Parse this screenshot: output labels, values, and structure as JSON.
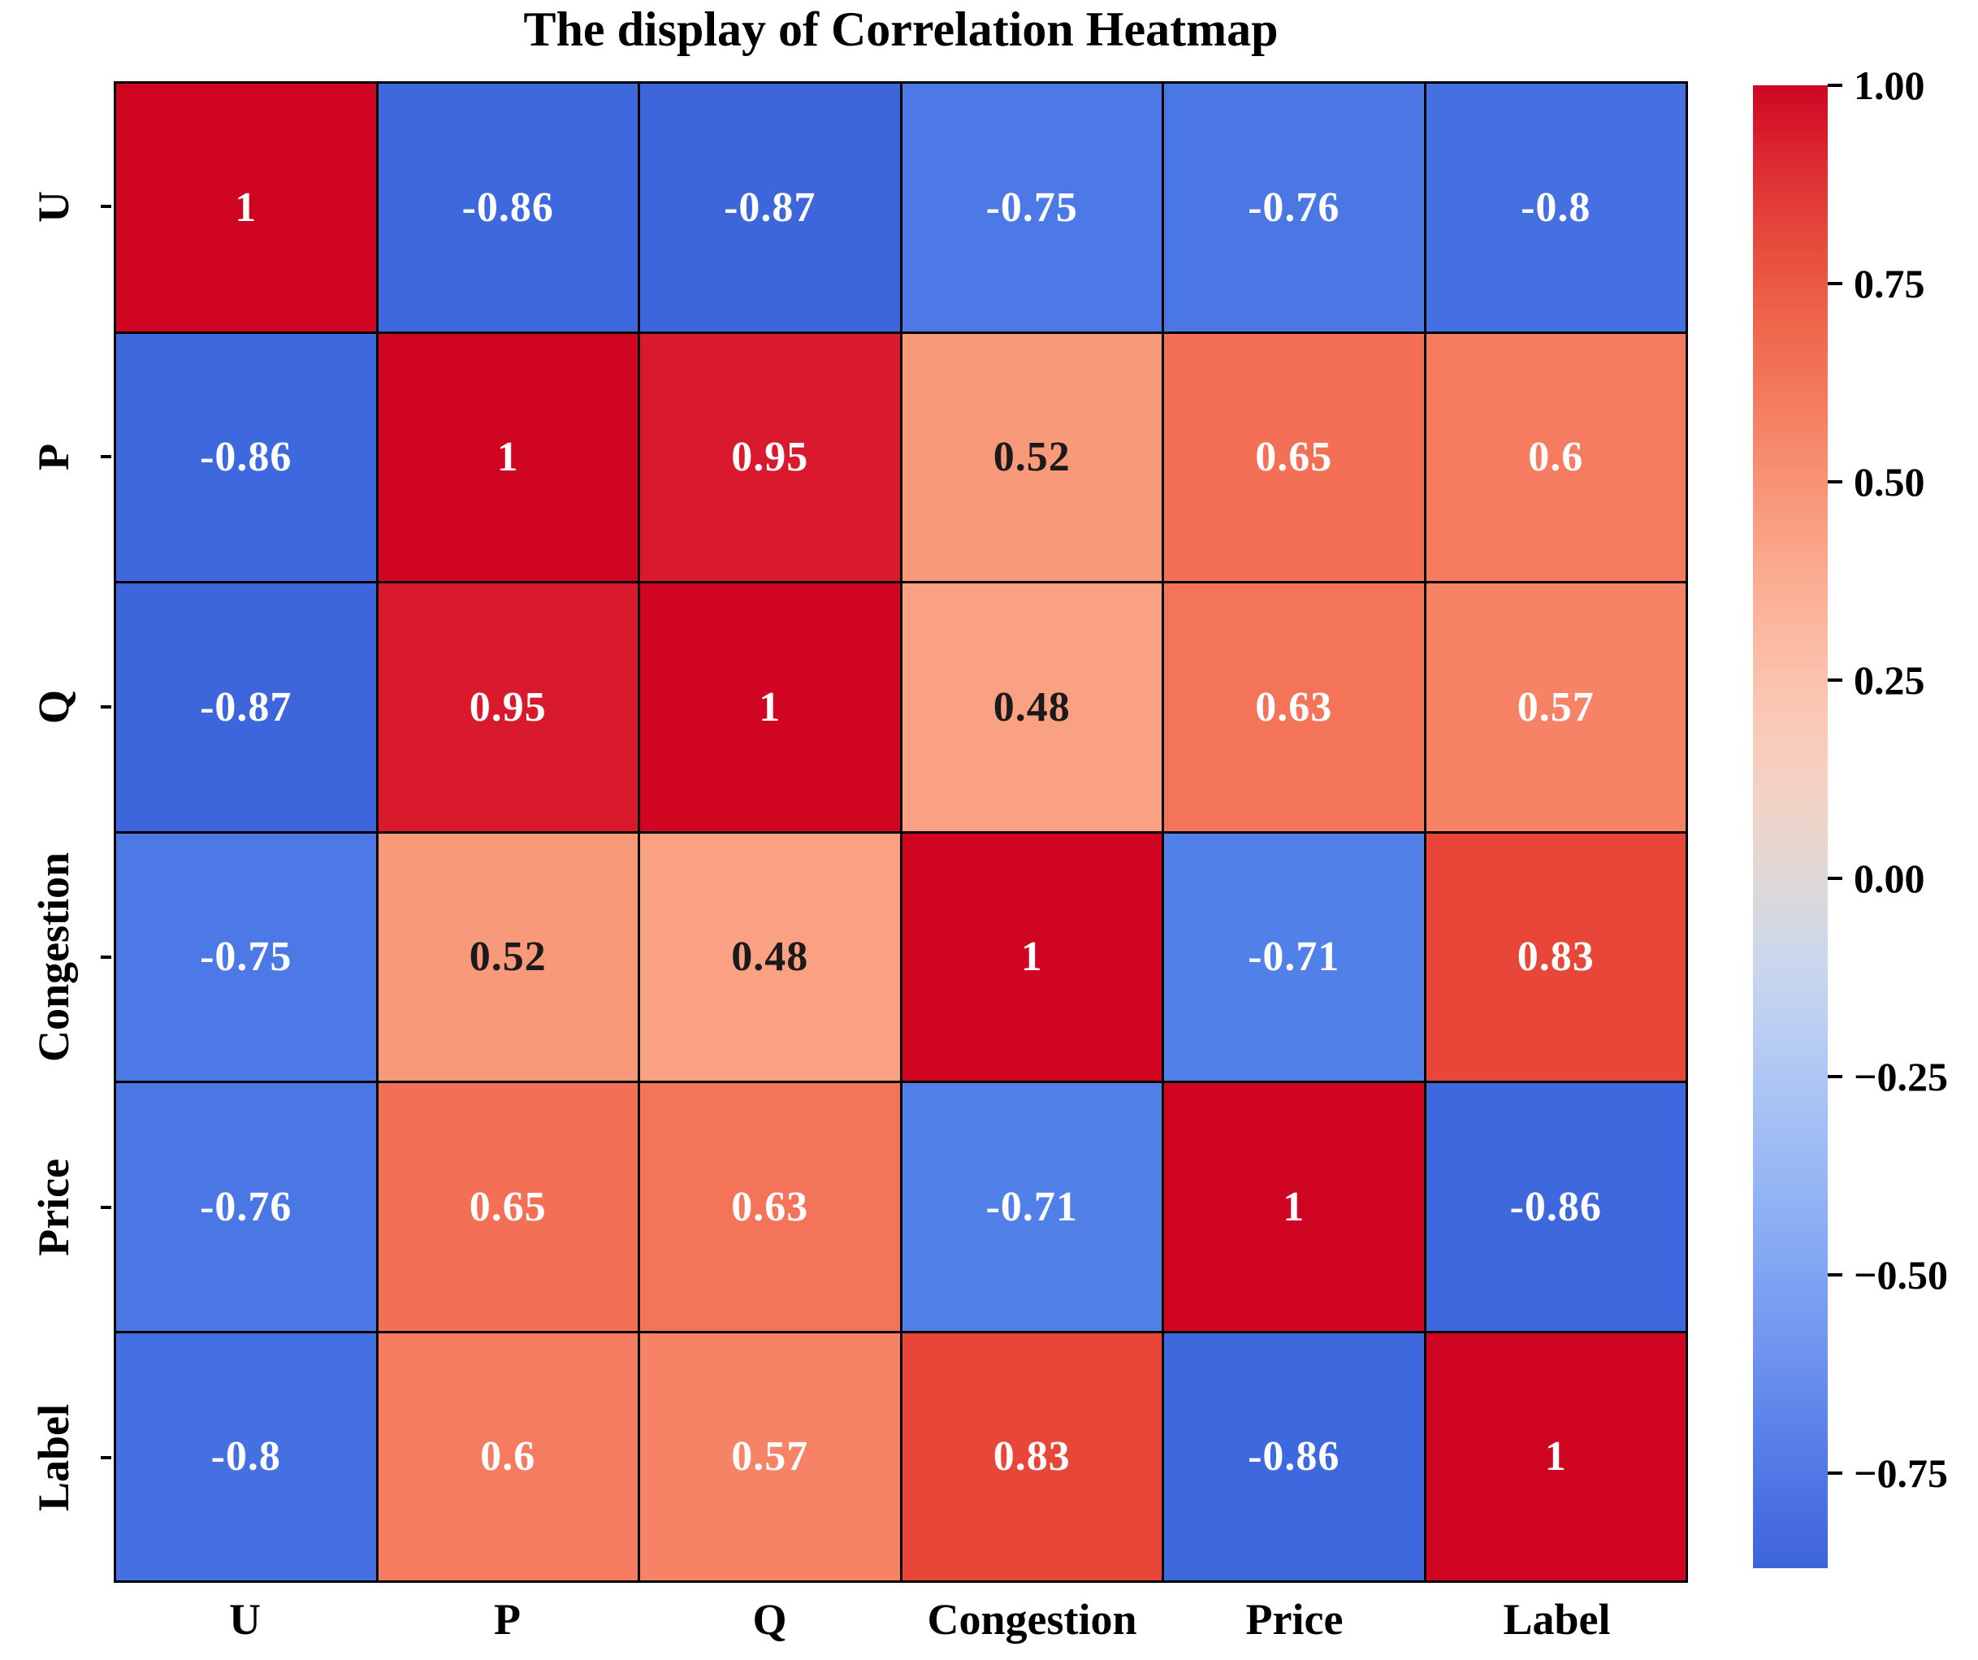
{
  "title": "The display of Correlation Heatmap",
  "chart_data": {
    "type": "heatmap",
    "title": "The display of Correlation Heatmap",
    "categories": [
      "U",
      "P",
      "Q",
      "Congestion",
      "Price",
      "Label"
    ],
    "matrix": [
      [
        1,
        -0.86,
        -0.87,
        -0.75,
        -0.76,
        -0.8
      ],
      [
        -0.86,
        1,
        0.95,
        0.52,
        0.65,
        0.6
      ],
      [
        -0.87,
        0.95,
        1,
        0.48,
        0.63,
        0.57
      ],
      [
        -0.75,
        0.52,
        0.48,
        1,
        -0.71,
        0.83
      ],
      [
        -0.76,
        0.65,
        0.63,
        -0.71,
        1,
        -0.86
      ],
      [
        -0.8,
        0.6,
        0.57,
        0.83,
        -0.86,
        1
      ]
    ],
    "cell_labels": [
      [
        "1",
        "-0.86",
        "-0.87",
        "-0.75",
        "-0.76",
        "-0.8"
      ],
      [
        "-0.86",
        "1",
        "0.95",
        "0.52",
        "0.65",
        "0.6"
      ],
      [
        "-0.87",
        "0.95",
        "1",
        "0.48",
        "0.63",
        "0.57"
      ],
      [
        "-0.75",
        "0.52",
        "0.48",
        "1",
        "-0.71",
        "0.83"
      ],
      [
        "-0.76",
        "0.65",
        "0.63",
        "-0.71",
        "1",
        "-0.86"
      ],
      [
        "-0.8",
        "0.6",
        "0.57",
        "0.83",
        "-0.86",
        "1"
      ]
    ],
    "cell_colors": [
      [
        "#d00522",
        "#3e68dd",
        "#3d66dc",
        "#4d79e6",
        "#4b77e4",
        "#4570e1"
      ],
      [
        "#3e68dd",
        "#d00522",
        "#d91a2d",
        "#f89a79",
        "#f37056",
        "#f57c60"
      ],
      [
        "#3d66dc",
        "#d91a2d",
        "#d00522",
        "#f9a182",
        "#f4745a",
        "#f68366"
      ],
      [
        "#4d79e6",
        "#f89a79",
        "#f9a182",
        "#d00522",
        "#5280e9",
        "#e74638"
      ],
      [
        "#4b77e4",
        "#f37056",
        "#f4745a",
        "#5280e9",
        "#d00522",
        "#3e68dd"
      ],
      [
        "#4570e1",
        "#f57c60",
        "#f68366",
        "#e74638",
        "#3e68dd",
        "#d00522"
      ]
    ],
    "cell_text_colors": [
      [
        "#ffffff",
        "#ffffff",
        "#ffffff",
        "#ffffff",
        "#ffffff",
        "#ffffff"
      ],
      [
        "#ffffff",
        "#ffffff",
        "#ffffff",
        "#1a1a1a",
        "#ffffff",
        "#ffffff"
      ],
      [
        "#ffffff",
        "#ffffff",
        "#ffffff",
        "#1a1a1a",
        "#ffffff",
        "#ffffff"
      ],
      [
        "#ffffff",
        "#1a1a1a",
        "#1a1a1a",
        "#ffffff",
        "#ffffff",
        "#ffffff"
      ],
      [
        "#ffffff",
        "#ffffff",
        "#ffffff",
        "#ffffff",
        "#ffffff",
        "#ffffff"
      ],
      [
        "#ffffff",
        "#ffffff",
        "#ffffff",
        "#ffffff",
        "#ffffff",
        "#ffffff"
      ]
    ],
    "grid_line_color": "#000000",
    "background": "#ffffff",
    "legend_position": "right",
    "colorbar": {
      "vmin": -0.87,
      "vmax": 1.0,
      "tick_labels": [
        "1.00",
        "0.75",
        "0.50",
        "0.25",
        "0.00",
        "−0.25",
        "−0.50",
        "−0.75"
      ],
      "tick_values": [
        1.0,
        0.75,
        0.5,
        0.25,
        0.0,
        -0.25,
        -0.5,
        -0.75
      ],
      "gradient_stops": [
        {
          "value": 1.0,
          "color": "#cf0622"
        },
        {
          "value": 0.9,
          "color": "#dc2c32"
        },
        {
          "value": 0.8,
          "color": "#e64b3c"
        },
        {
          "value": 0.7,
          "color": "#ef664b"
        },
        {
          "value": 0.6,
          "color": "#f47c60"
        },
        {
          "value": 0.5,
          "color": "#f89274"
        },
        {
          "value": 0.4,
          "color": "#faa88c"
        },
        {
          "value": 0.3,
          "color": "#fbbaa2"
        },
        {
          "value": 0.2,
          "color": "#fac9b6"
        },
        {
          "value": 0.1,
          "color": "#f3d3c6"
        },
        {
          "value": 0.0,
          "color": "#ded9d6"
        },
        {
          "value": -0.1,
          "color": "#cbd7ec"
        },
        {
          "value": -0.2,
          "color": "#b9cdf2"
        },
        {
          "value": -0.3,
          "color": "#a5c0f5"
        },
        {
          "value": -0.4,
          "color": "#92b3f4"
        },
        {
          "value": -0.5,
          "color": "#80a4f2"
        },
        {
          "value": -0.6,
          "color": "#6e93ee"
        },
        {
          "value": -0.7,
          "color": "#5a81e9"
        },
        {
          "value": -0.8,
          "color": "#486fe0"
        },
        {
          "value": -0.87,
          "color": "#3d64da"
        }
      ]
    }
  }
}
